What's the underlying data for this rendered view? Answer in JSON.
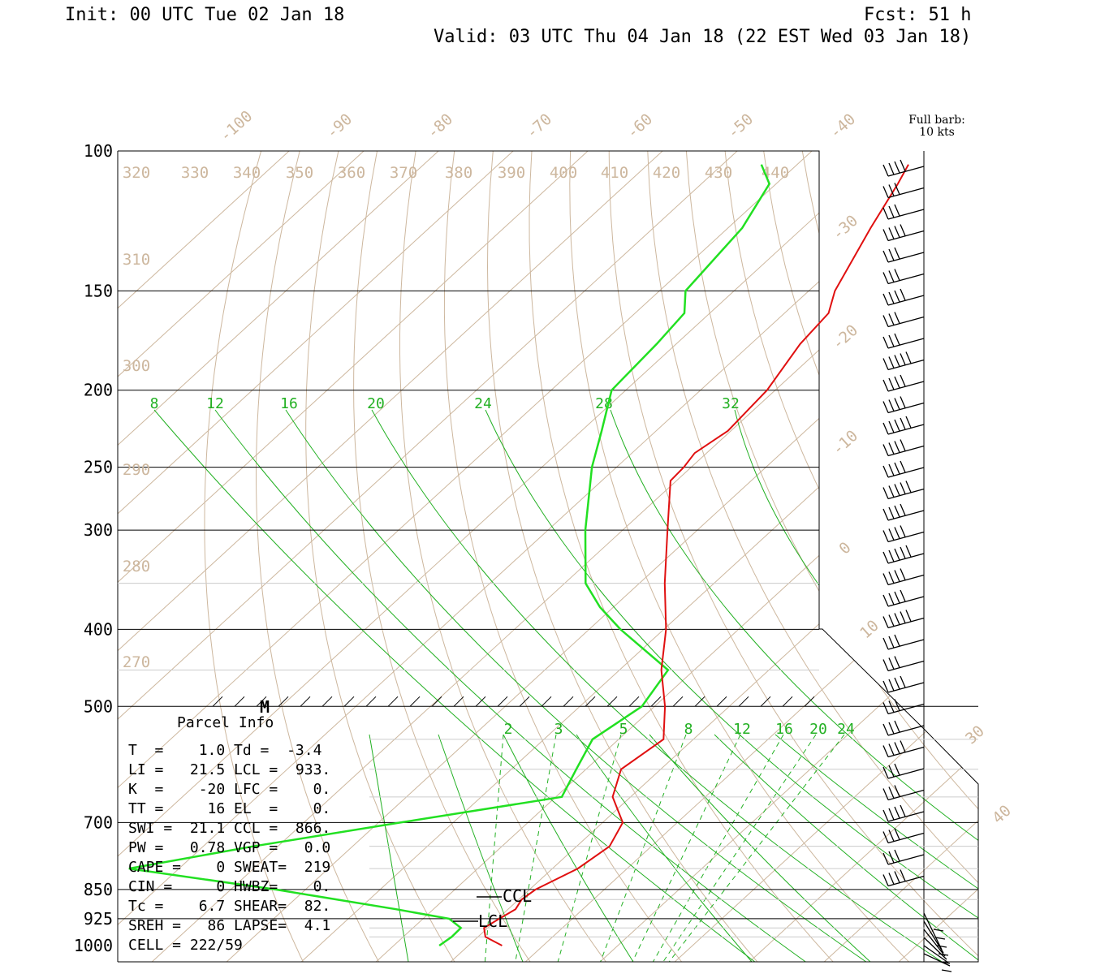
{
  "header": {
    "init": "Init: 00 UTC Tue 02 Jan 18",
    "fcst": "Fcst:   51 h",
    "valid": "Valid: 03 UTC Thu 04 Jan 18 (22 EST Wed 03 Jan 18)"
  },
  "barb_legend": {
    "line1": "Full barb:",
    "line2": "10 kts"
  },
  "colors": {
    "temperature": "#e01010",
    "dewpoint": "#22e022",
    "grid_tan": "#cdb79e",
    "mixing_green": "#22b022"
  },
  "chart_data": {
    "type": "skew-t",
    "pressure_levels": [
      100,
      150,
      200,
      250,
      300,
      400,
      500,
      700,
      850,
      925,
      1000
    ],
    "isotherm_labels": [
      "-100",
      "-90",
      "-80",
      "-70",
      "-60",
      "-50",
      "-40",
      "-30",
      "-20",
      "-10",
      "0",
      "10",
      "30",
      "40"
    ],
    "theta_e_labels": [
      "320",
      "330",
      "340",
      "350",
      "360",
      "370",
      "380",
      "390",
      "400",
      "410",
      "420",
      "430",
      "440",
      "310",
      "300",
      "290",
      "280",
      "270"
    ],
    "mixing_ratio_labels_upper": [
      "8",
      "12",
      "16",
      "20",
      "24",
      "28",
      "32"
    ],
    "mixing_ratio_labels_lower": [
      "2",
      "3",
      "5",
      "8",
      "12",
      "16",
      "20",
      "24"
    ],
    "temperature_profile": [
      {
        "p": 1000,
        "t": 4.5
      },
      {
        "p": 975,
        "t": 1.0
      },
      {
        "p": 950,
        "t": -0.5
      },
      {
        "p": 925,
        "t": 0.2
      },
      {
        "p": 900,
        "t": 1.0
      },
      {
        "p": 875,
        "t": 0.4
      },
      {
        "p": 850,
        "t": 0.8
      },
      {
        "p": 800,
        "t": 3.4
      },
      {
        "p": 750,
        "t": 4.4
      },
      {
        "p": 700,
        "t": 2.7
      },
      {
        "p": 650,
        "t": -2.4
      },
      {
        "p": 600,
        "t": -5.3
      },
      {
        "p": 550,
        "t": -4.0
      },
      {
        "p": 500,
        "t": -8.6
      },
      {
        "p": 450,
        "t": -14.4
      },
      {
        "p": 400,
        "t": -19.7
      },
      {
        "p": 350,
        "t": -26.6
      },
      {
        "p": 300,
        "t": -34.0
      },
      {
        "p": 260,
        "t": -40.8
      },
      {
        "p": 250,
        "t": -41.0
      },
      {
        "p": 240,
        "t": -41.6
      },
      {
        "p": 225,
        "t": -40.4
      },
      {
        "p": 200,
        "t": -41.1
      },
      {
        "p": 175,
        "t": -43.4
      },
      {
        "p": 160,
        "t": -44.1
      },
      {
        "p": 150,
        "t": -46.5
      },
      {
        "p": 125,
        "t": -50.9
      },
      {
        "p": 110,
        "t": -53.7
      },
      {
        "p": 104,
        "t": -55.1
      }
    ],
    "dewpoint_profile": [
      {
        "p": 1000,
        "td": -3.9
      },
      {
        "p": 975,
        "td": -3.5
      },
      {
        "p": 950,
        "td": -3.6
      },
      {
        "p": 925,
        "td": -6.5
      },
      {
        "p": 900,
        "td": -15.0
      },
      {
        "p": 850,
        "td": -34.0
      },
      {
        "p": 800,
        "td": -56.7
      },
      {
        "p": 750,
        "td": -43.3
      },
      {
        "p": 700,
        "td": -27.1
      },
      {
        "p": 650,
        "td": -9.2
      },
      {
        "p": 600,
        "td": -11.3
      },
      {
        "p": 550,
        "td": -13.5
      },
      {
        "p": 500,
        "td": -11.7
      },
      {
        "p": 450,
        "td": -13.5
      },
      {
        "p": 400,
        "td": -25.8
      },
      {
        "p": 375,
        "td": -31.8
      },
      {
        "p": 350,
        "td": -37.2
      },
      {
        "p": 300,
        "td": -45.0
      },
      {
        "p": 250,
        "td": -53.3
      },
      {
        "p": 225,
        "td": -57.3
      },
      {
        "p": 200,
        "td": -61.9
      },
      {
        "p": 175,
        "td": -62.6
      },
      {
        "p": 160,
        "td": -63.4
      },
      {
        "p": 150,
        "td": -66.5
      },
      {
        "p": 125,
        "td": -68.1
      },
      {
        "p": 110,
        "td": -70.9
      },
      {
        "p": 104,
        "td": -74.8
      }
    ],
    "wind_barbs_count": 36,
    "marker_M_level": 500,
    "ccl_pressure": 866,
    "lcl_pressure": 933
  },
  "parcel_info": {
    "title": "Parcel Info",
    "rows": [
      "T  =    1.0 Td =  -3.4",
      "LI =   21.5 LCL =  933.",
      "K  =    -20 LFC =    0.",
      "TT =     16 EL  =    0.",
      "SWI =  21.1 CCL =  866.",
      "PW =   0.78 VGP =   0.0",
      "CAPE =    0 SWEAT=  219",
      "CIN =     0 HWBZ=    0.",
      "Tc =    6.7 SHEAR=  82.",
      "SREH =   86 LAPSE=  4.1",
      "CELL = 222/59"
    ]
  },
  "markers": {
    "m": "M",
    "ccl": "CCL",
    "lcl": "LCL"
  }
}
